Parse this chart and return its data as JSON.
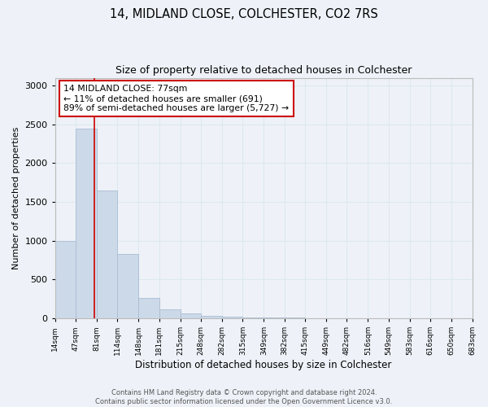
{
  "title1": "14, MIDLAND CLOSE, COLCHESTER, CO2 7RS",
  "title2": "Size of property relative to detached houses in Colchester",
  "xlabel": "Distribution of detached houses by size in Colchester",
  "ylabel": "Number of detached properties",
  "annotation_line1": "14 MIDLAND CLOSE: 77sqm",
  "annotation_line2": "← 11% of detached houses are smaller (691)",
  "annotation_line3": "89% of semi-detached houses are larger (5,727) →",
  "property_line_x": 77,
  "bin_edges": [
    14,
    47,
    81,
    114,
    148,
    181,
    215,
    248,
    282,
    315,
    349,
    382,
    415,
    449,
    482,
    516,
    549,
    583,
    616,
    650,
    683
  ],
  "bar_heights": [
    1000,
    2450,
    1650,
    830,
    260,
    120,
    60,
    30,
    20,
    15,
    10,
    8,
    5,
    4,
    3,
    2,
    2,
    1,
    1,
    1
  ],
  "bar_color": "#ccd9e8",
  "bar_edge_color": "#aabdd4",
  "grid_color": "#dce8f0",
  "property_line_color": "#cc0000",
  "annotation_box_edge_color": "#cc0000",
  "background_color": "#eef2f8",
  "ylim": [
    0,
    3100
  ],
  "yticks": [
    0,
    500,
    1000,
    1500,
    2000,
    2500,
    3000
  ],
  "footer_line1": "Contains HM Land Registry data © Crown copyright and database right 2024.",
  "footer_line2": "Contains public sector information licensed under the Open Government Licence v3.0."
}
